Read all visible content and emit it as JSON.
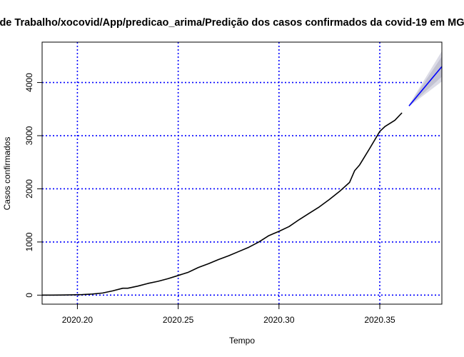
{
  "chart_data": {
    "type": "line",
    "title": "de Trabalho/xocovid/App/predicao_arima/Predição dos casos confirmados da covid-19 em MG",
    "xlabel": "Tempo",
    "ylabel": "Casos confirmados",
    "xlim": [
      2020.1825,
      2020.3808
    ],
    "ylim": [
      -170,
      4760
    ],
    "x_ticks": [
      "2020.20",
      "2020.25",
      "2020.30",
      "2020.35"
    ],
    "x_tick_values": [
      2020.2,
      2020.25,
      2020.3,
      2020.35
    ],
    "y_ticks": [
      "0",
      "1000",
      "2000",
      "3000",
      "4000"
    ],
    "y_tick_values": [
      0,
      1000,
      2000,
      3000,
      4000
    ],
    "grid": true,
    "grid_style": "dotted",
    "grid_color": "#0000ff",
    "series": [
      {
        "kind": "observed",
        "color": "#000000",
        "x": [
          2020.1825,
          2020.1875,
          2020.1925,
          2020.1975,
          2020.2025,
          2020.2075,
          2020.2125,
          2020.2175,
          2020.2225,
          2020.225,
          2020.23,
          2020.235,
          2020.24,
          2020.245,
          2020.25,
          2020.255,
          2020.26,
          2020.265,
          2020.27,
          2020.275,
          2020.28,
          2020.285,
          2020.29,
          2020.295,
          2020.3,
          2020.305,
          2020.31,
          2020.315,
          2020.32,
          2020.325,
          2020.33,
          2020.335,
          2020.3375,
          2020.34,
          2020.345,
          2020.35,
          2020.3525,
          2020.3575,
          2020.361
        ],
        "y": [
          0,
          0,
          2,
          5,
          10,
          20,
          40,
          80,
          130,
          130,
          170,
          220,
          260,
          310,
          370,
          430,
          520,
          590,
          670,
          740,
          820,
          900,
          1000,
          1120,
          1200,
          1290,
          1420,
          1540,
          1660,
          1800,
          1950,
          2120,
          2340,
          2450,
          2760,
          3080,
          3170,
          3290,
          3430
        ]
      },
      {
        "kind": "forecast",
        "color": "#0000ff",
        "x": [
          2020.3645,
          2020.3808
        ],
        "y": [
          3560,
          4300
        ]
      }
    ],
    "intervals": [
      {
        "level": "95%",
        "color": "#dcdce6",
        "x": [
          2020.3645,
          2020.3808
        ],
        "lower": [
          3550,
          4020
        ],
        "upper": [
          3580,
          4590
        ]
      },
      {
        "level": "80%",
        "color": "#c2c2d2",
        "x": [
          2020.3645,
          2020.3808
        ],
        "lower": [
          3555,
          4110
        ],
        "upper": [
          3570,
          4490
        ]
      }
    ]
  }
}
